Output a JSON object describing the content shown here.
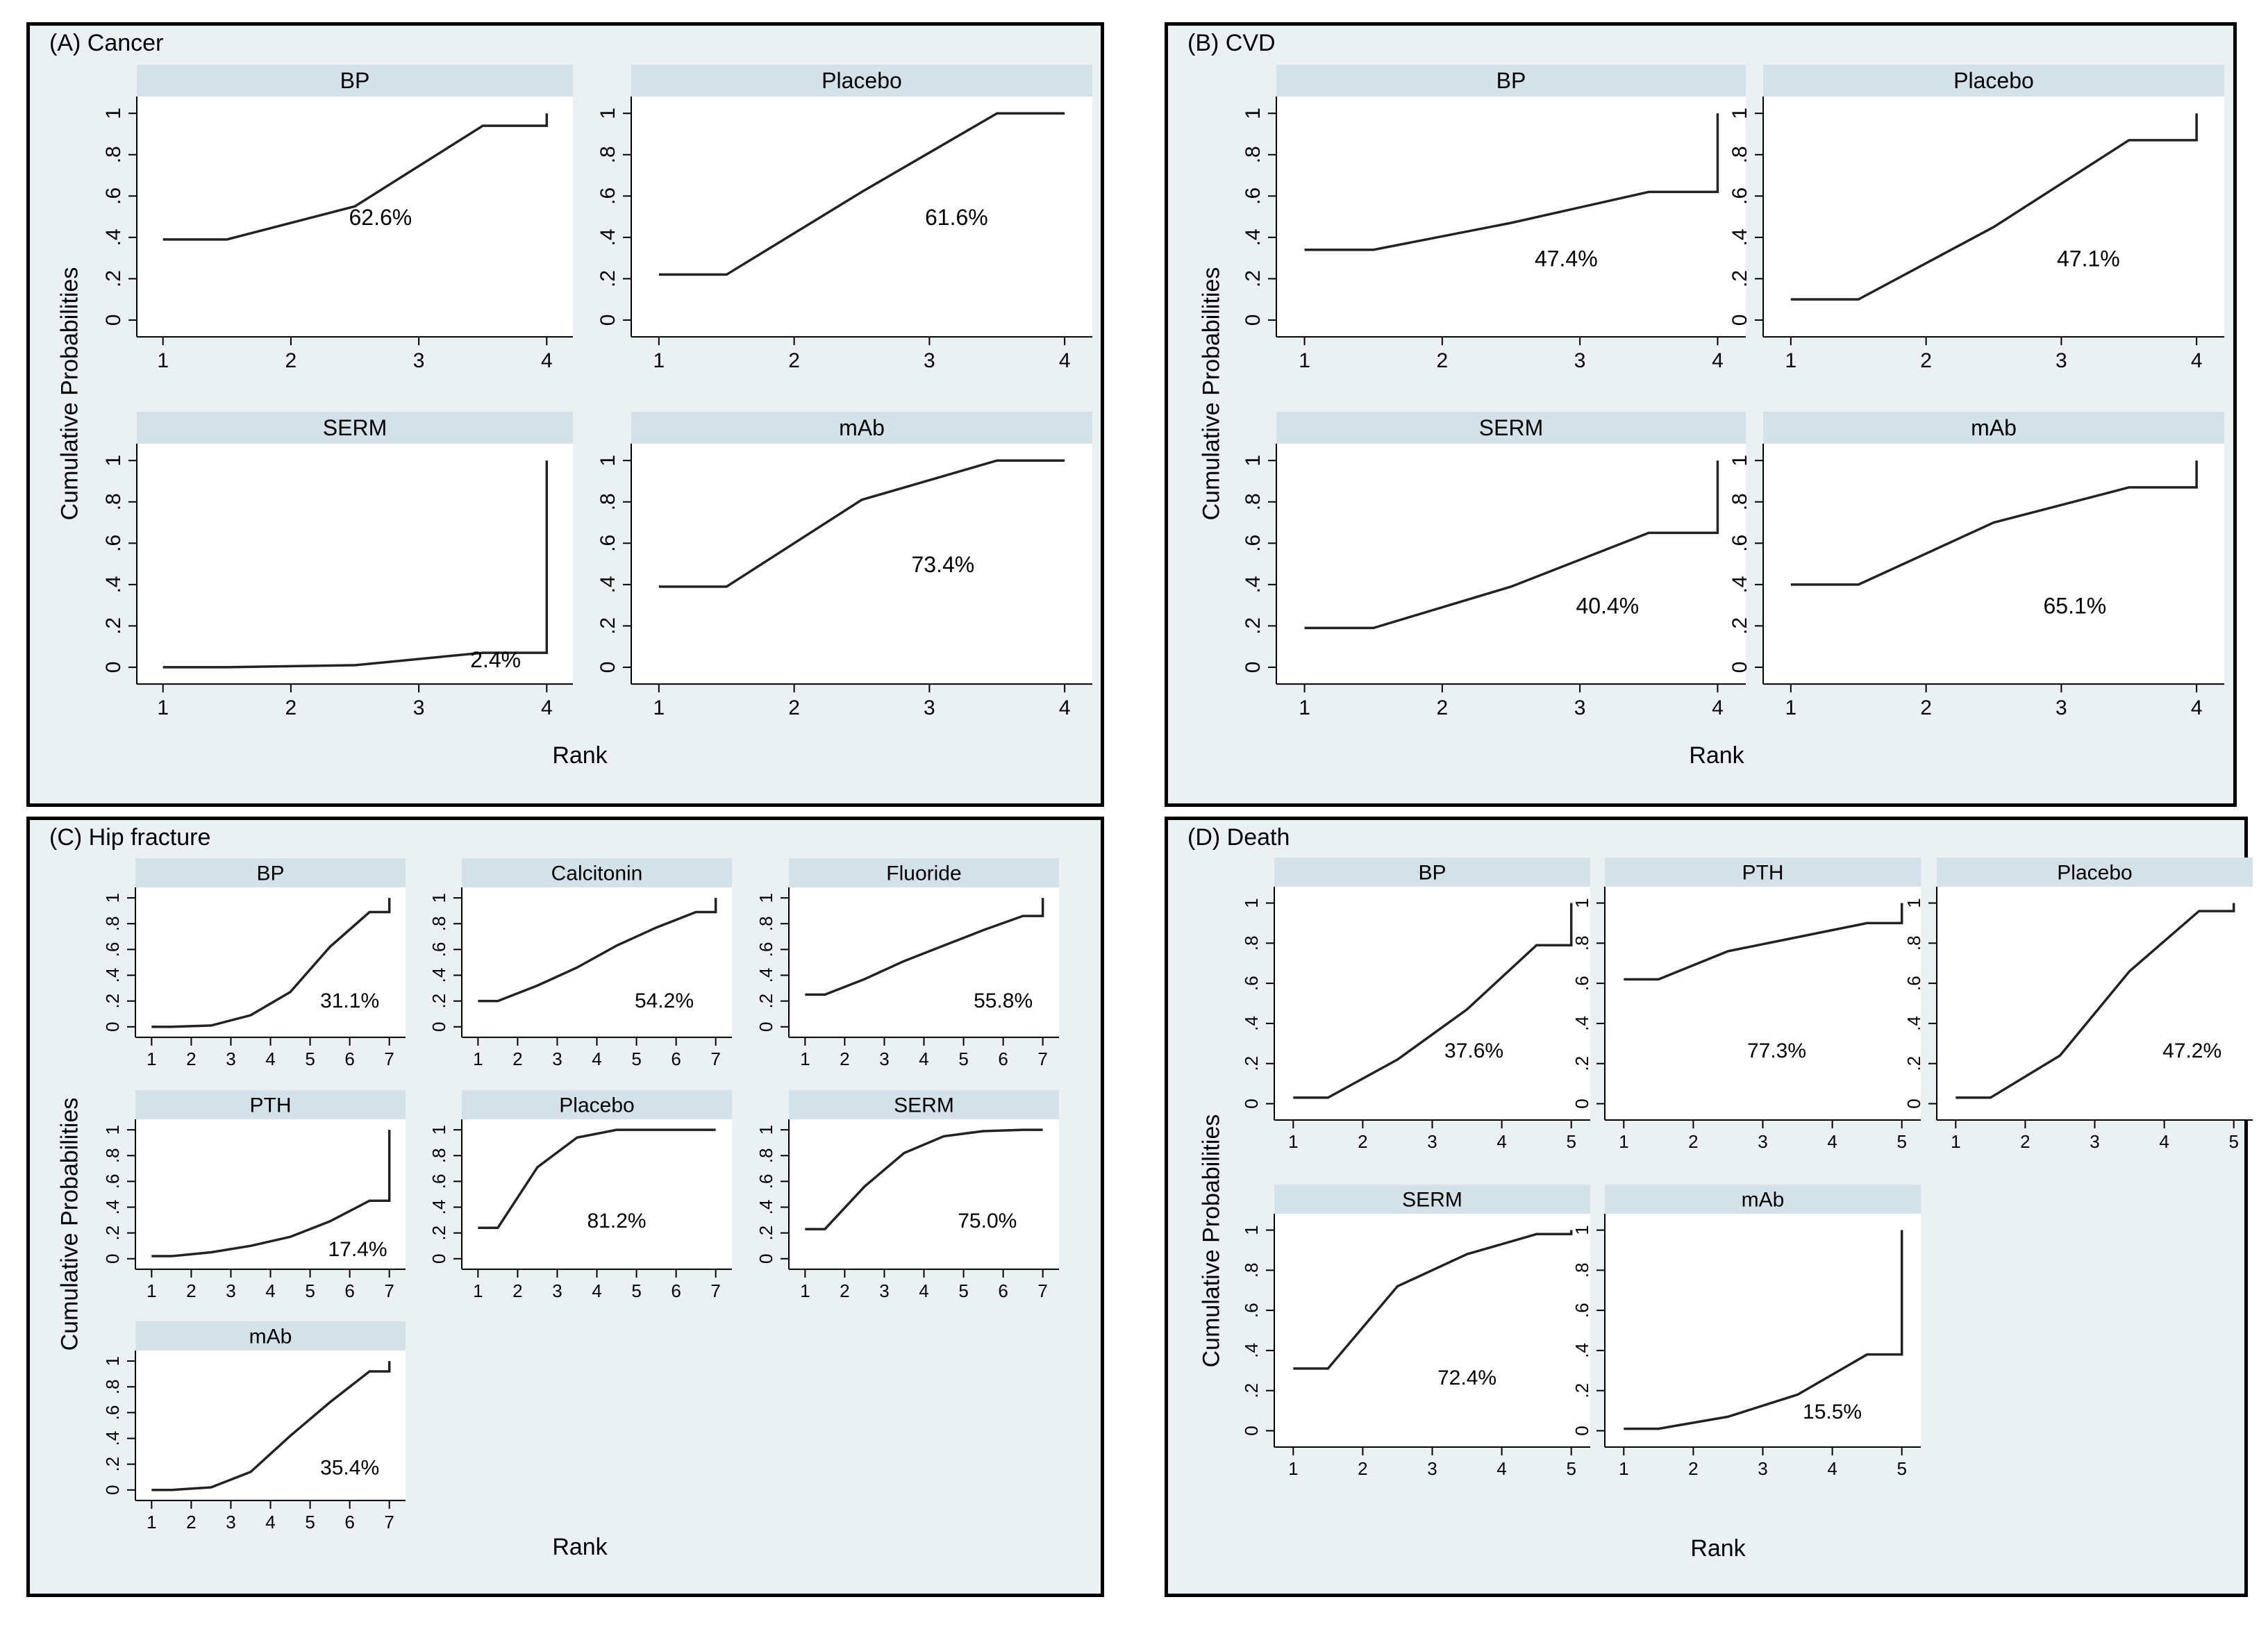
{
  "chart_data": [
    {
      "panel": "A",
      "title": "(A) Cancer",
      "type": "line",
      "ylabel": "Cumulative Probabilities",
      "xlabel": "Rank",
      "x": [
        1,
        2,
        3,
        4
      ],
      "ylim": [
        0,
        1
      ],
      "yticks": [
        "0",
        ".2",
        ".4",
        ".6",
        ".8",
        "1"
      ],
      "xticks": [
        "1",
        "2",
        "3",
        "4"
      ],
      "series": [
        {
          "name": "BP",
          "values": [
            0.39,
            0.55,
            0.94,
            1.0
          ],
          "label": "62.6%"
        },
        {
          "name": "Placebo",
          "values": [
            0.22,
            0.62,
            1.0,
            1.0
          ],
          "label": "61.6%"
        },
        {
          "name": "SERM",
          "values": [
            0.0,
            0.01,
            0.07,
            1.0
          ],
          "label": "2.4%"
        },
        {
          "name": "mAb",
          "values": [
            0.39,
            0.81,
            1.0,
            1.0
          ],
          "label": "73.4%"
        }
      ]
    },
    {
      "panel": "B",
      "title": "(B) CVD",
      "type": "line",
      "ylabel": "Cumulative Probabilities",
      "xlabel": "Rank",
      "x": [
        1,
        2,
        3,
        4
      ],
      "ylim": [
        0,
        1
      ],
      "yticks": [
        "0",
        ".2",
        ".4",
        ".6",
        ".8",
        "1"
      ],
      "xticks": [
        "1",
        "2",
        "3",
        "4"
      ],
      "series": [
        {
          "name": "BP",
          "values": [
            0.34,
            0.47,
            0.62,
            1.0
          ],
          "label": "47.4%"
        },
        {
          "name": "Placebo",
          "values": [
            0.1,
            0.45,
            0.87,
            1.0
          ],
          "label": "47.1%"
        },
        {
          "name": "SERM",
          "values": [
            0.19,
            0.39,
            0.65,
            1.0
          ],
          "label": "40.4%"
        },
        {
          "name": "mAb",
          "values": [
            0.4,
            0.7,
            0.87,
            1.0
          ],
          "label": "65.1%"
        }
      ]
    },
    {
      "panel": "C",
      "title": "(C) Hip fracture",
      "type": "line",
      "ylabel": "Cumulative Probabilities",
      "xlabel": "Rank",
      "x": [
        1,
        2,
        3,
        4,
        5,
        6,
        7
      ],
      "ylim": [
        0,
        1
      ],
      "yticks": [
        "0",
        ".2",
        ".4",
        ".6",
        ".8",
        "1"
      ],
      "xticks": [
        "1",
        "2",
        "3",
        "4",
        "5",
        "6",
        "7"
      ],
      "series": [
        {
          "name": "BP",
          "values": [
            0.0,
            0.01,
            0.09,
            0.27,
            0.62,
            0.89,
            1.0
          ],
          "label": "31.1%"
        },
        {
          "name": "Calcitonin",
          "values": [
            0.2,
            0.32,
            0.46,
            0.63,
            0.77,
            0.89,
            1.0
          ],
          "label": "54.2%"
        },
        {
          "name": "Fluoride",
          "values": [
            0.25,
            0.37,
            0.51,
            0.63,
            0.75,
            0.86,
            1.0
          ],
          "label": "55.8%"
        },
        {
          "name": "PTH",
          "values": [
            0.02,
            0.05,
            0.1,
            0.17,
            0.29,
            0.45,
            1.0
          ],
          "label": "17.4%"
        },
        {
          "name": "Placebo",
          "values": [
            0.24,
            0.71,
            0.94,
            1.0,
            1.0,
            1.0,
            1.0
          ],
          "label": "81.2%"
        },
        {
          "name": "SERM",
          "values": [
            0.23,
            0.56,
            0.82,
            0.95,
            0.99,
            1.0,
            1.0
          ],
          "label": "75.0%"
        },
        {
          "name": "mAb",
          "values": [
            0.0,
            0.02,
            0.14,
            0.42,
            0.68,
            0.92,
            1.0
          ],
          "label": "35.4%"
        }
      ]
    },
    {
      "panel": "D",
      "title": "(D) Death",
      "type": "line",
      "ylabel": "Cumulative Probabilities",
      "xlabel": "Rank",
      "x": [
        1,
        2,
        3,
        4,
        5
      ],
      "ylim": [
        0,
        1
      ],
      "yticks": [
        "0",
        ".2",
        ".4",
        ".6",
        ".8",
        "1"
      ],
      "xticks": [
        "1",
        "2",
        "3",
        "4",
        "5"
      ],
      "series": [
        {
          "name": "BP",
          "values": [
            0.03,
            0.22,
            0.47,
            0.79,
            1.0
          ],
          "label": "37.6%"
        },
        {
          "name": "PTH",
          "values": [
            0.62,
            0.76,
            0.83,
            0.9,
            1.0
          ],
          "label": "77.3%"
        },
        {
          "name": "Placebo",
          "values": [
            0.03,
            0.24,
            0.66,
            0.96,
            1.0
          ],
          "label": "47.2%"
        },
        {
          "name": "SERM",
          "values": [
            0.31,
            0.72,
            0.88,
            0.98,
            1.0
          ],
          "label": "72.4%"
        },
        {
          "name": "mAb",
          "values": [
            0.01,
            0.07,
            0.18,
            0.38,
            1.0
          ],
          "label": "15.5%"
        }
      ]
    }
  ]
}
